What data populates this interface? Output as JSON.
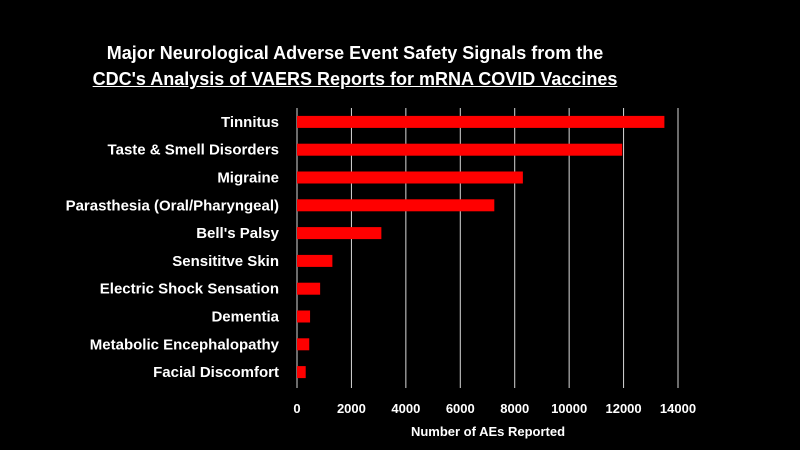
{
  "chart_data": {
    "type": "bar",
    "orientation": "horizontal",
    "title_line1": "Major Neurological Adverse Event Safety Signals from the",
    "title_line2": "CDC's Analysis of VAERS Reports for mRNA COVID Vaccines",
    "xlabel": "Number of AEs Reported",
    "ylabel": "",
    "xlim": [
      0,
      14000
    ],
    "xticks": [
      0,
      2000,
      4000,
      6000,
      8000,
      10000,
      12000,
      14000
    ],
    "grid": true,
    "bar_color": "#ff0000",
    "categories": [
      "Tinnitus",
      "Taste & Smell Disorders",
      "Migraine",
      "Parasthesia (Oral/Pharyngeal)",
      "Bell's Palsy",
      "Sensititve Skin",
      "Electric Shock Sensation",
      "Dementia",
      "Metabolic Encephalopathy",
      "Facial Discomfort"
    ],
    "values": [
      13500,
      11950,
      8300,
      7250,
      3100,
      1300,
      850,
      480,
      450,
      320
    ]
  }
}
